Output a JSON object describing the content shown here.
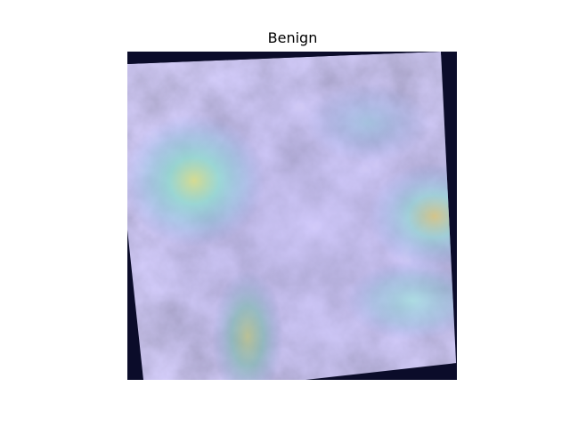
{
  "figure": {
    "title": "Benign"
  }
}
